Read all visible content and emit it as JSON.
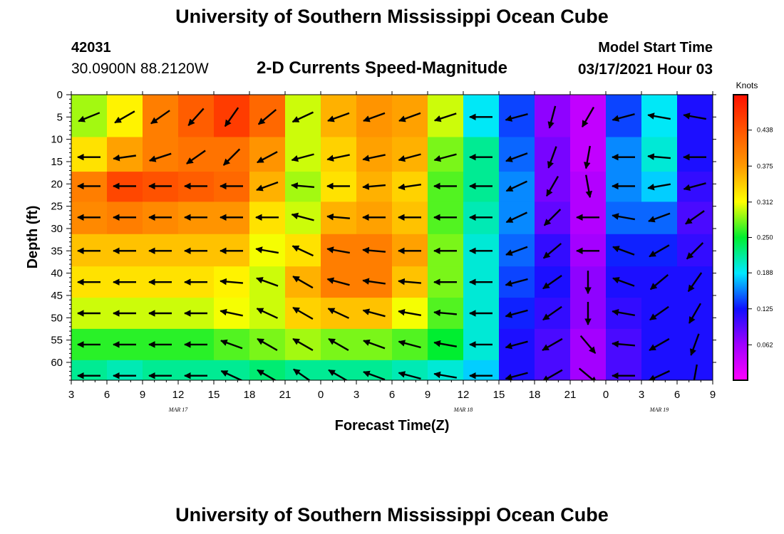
{
  "header": {
    "title": "University of Southern Mississippi Ocean Cube",
    "station_id": "42031",
    "station_location": "30.0900N 88.2120W",
    "model_start_label": "Model Start Time",
    "model_start_time": "03/17/2021 Hour 03"
  },
  "footer": {
    "title": "University of Southern Mississippi Ocean Cube"
  },
  "chart_data": {
    "type": "heatmap",
    "title": "2-D Currents Speed-Magnitude",
    "xlabel": "Forecast Time(Z)",
    "ylabel": "Depth (ft)",
    "x_tick_labels": [
      "3",
      "6",
      "9",
      "12",
      "15",
      "18",
      "21",
      "0",
      "3",
      "6",
      "9",
      "12",
      "15",
      "18",
      "21",
      "0",
      "3",
      "6",
      "9"
    ],
    "x_date_labels": [
      {
        "label": "MAR 17",
        "at_tick": 3
      },
      {
        "label": "MAR 18",
        "at_tick": 11
      },
      {
        "label": "MAR 19",
        "at_tick": 16.5
      }
    ],
    "y_ticks": [
      0,
      5,
      10,
      15,
      20,
      25,
      30,
      35,
      40,
      45,
      50,
      55,
      60
    ],
    "ylim": [
      0,
      64
    ],
    "y_inverted": true,
    "colorbar": {
      "label": "Knots",
      "ticks": [
        "0.438",
        "0.375",
        "0.312",
        "0.250",
        "0.188",
        "0.125",
        "0.062"
      ],
      "range": [
        0.0,
        0.5
      ]
    },
    "depths": [
      5,
      14,
      20.5,
      27.5,
      35,
      42,
      49,
      56,
      63
    ],
    "columns": [
      {
        "t": 0.5,
        "speeds": [
          0.29,
          0.33,
          0.4,
          0.39,
          0.35,
          0.33,
          0.3,
          0.26,
          0.22
        ],
        "dirs": [
          -22,
          0,
          0,
          0,
          0,
          0,
          0,
          0,
          0
        ]
      },
      {
        "t": 1.5,
        "speeds": [
          0.32,
          0.37,
          0.45,
          0.4,
          0.35,
          0.33,
          0.3,
          0.26,
          0.21
        ],
        "dirs": [
          -30,
          -8,
          0,
          0,
          0,
          0,
          0,
          0,
          0
        ]
      },
      {
        "t": 2.5,
        "speeds": [
          0.4,
          0.4,
          0.44,
          0.39,
          0.35,
          0.33,
          0.3,
          0.26,
          0.22
        ],
        "dirs": [
          -35,
          -18,
          0,
          0,
          0,
          0,
          0,
          0,
          0
        ]
      },
      {
        "t": 3.5,
        "speeds": [
          0.43,
          0.41,
          0.43,
          0.38,
          0.35,
          0.33,
          0.3,
          0.26,
          0.22
        ],
        "dirs": [
          -48,
          -35,
          0,
          0,
          0,
          0,
          0,
          0,
          0
        ]
      },
      {
        "t": 4.5,
        "speeds": [
          0.46,
          0.41,
          0.42,
          0.38,
          0.35,
          0.32,
          0.31,
          0.27,
          0.22
        ],
        "dirs": [
          -55,
          -45,
          0,
          0,
          0,
          5,
          12,
          20,
          25
        ]
      },
      {
        "t": 5.5,
        "speeds": [
          0.42,
          0.38,
          0.36,
          0.33,
          0.31,
          0.3,
          0.3,
          0.28,
          0.23
        ],
        "dirs": [
          -40,
          -28,
          -20,
          0,
          10,
          20,
          25,
          30,
          30
        ]
      },
      {
        "t": 6.5,
        "speeds": [
          0.3,
          0.3,
          0.29,
          0.3,
          0.33,
          0.36,
          0.34,
          0.29,
          0.22
        ],
        "dirs": [
          -25,
          -15,
          5,
          15,
          25,
          30,
          30,
          30,
          35
        ]
      },
      {
        "t": 7.5,
        "speeds": [
          0.36,
          0.34,
          0.33,
          0.36,
          0.4,
          0.4,
          0.35,
          0.28,
          0.22
        ],
        "dirs": [
          -20,
          -12,
          0,
          5,
          10,
          15,
          25,
          30,
          30
        ]
      },
      {
        "t": 8.5,
        "speeds": [
          0.38,
          0.37,
          0.36,
          0.37,
          0.4,
          0.4,
          0.35,
          0.28,
          0.22
        ],
        "dirs": [
          -20,
          -12,
          -5,
          0,
          5,
          8,
          15,
          20,
          20
        ]
      },
      {
        "t": 9.5,
        "speeds": [
          0.37,
          0.36,
          0.34,
          0.35,
          0.37,
          0.35,
          0.31,
          0.27,
          0.21
        ],
        "dirs": [
          -20,
          -15,
          -8,
          0,
          0,
          5,
          10,
          15,
          15
        ]
      },
      {
        "t": 10.5,
        "speeds": [
          0.3,
          0.28,
          0.27,
          0.27,
          0.28,
          0.28,
          0.27,
          0.25,
          0.2
        ],
        "dirs": [
          -18,
          -15,
          0,
          0,
          0,
          0,
          5,
          10,
          10
        ]
      },
      {
        "t": 11.5,
        "speeds": [
          0.19,
          0.22,
          0.22,
          0.21,
          0.2,
          0.2,
          0.2,
          0.2,
          0.18
        ],
        "dirs": [
          0,
          0,
          0,
          0,
          0,
          0,
          0,
          0,
          0
        ]
      },
      {
        "t": 12.5,
        "speeds": [
          0.14,
          0.15,
          0.16,
          0.16,
          0.15,
          0.14,
          0.13,
          0.12,
          0.12
        ],
        "dirs": [
          -15,
          -20,
          -25,
          -25,
          -20,
          -15,
          -15,
          -15,
          -15
        ]
      },
      {
        "t": 13.5,
        "speeds": [
          0.07,
          0.08,
          0.08,
          0.09,
          0.11,
          0.12,
          0.11,
          0.1,
          0.1
        ],
        "dirs": [
          -75,
          -70,
          -60,
          -45,
          -40,
          -35,
          -35,
          -30,
          -30
        ]
      },
      {
        "t": 14.5,
        "speeds": [
          0.04,
          0.04,
          0.05,
          0.05,
          0.06,
          0.07,
          0.07,
          0.06,
          0.06
        ],
        "dirs": [
          -60,
          -80,
          -100,
          0,
          0,
          -90,
          -90,
          -130,
          -140
        ]
      },
      {
        "t": 15.5,
        "speeds": [
          0.14,
          0.16,
          0.16,
          0.15,
          0.13,
          0.12,
          0.11,
          0.1,
          0.1
        ],
        "dirs": [
          -15,
          0,
          0,
          10,
          20,
          20,
          10,
          5,
          0
        ]
      },
      {
        "t": 16.5,
        "speeds": [
          0.19,
          0.2,
          0.18,
          0.15,
          0.13,
          0.12,
          0.12,
          0.12,
          0.12
        ],
        "dirs": [
          10,
          5,
          -10,
          -20,
          -30,
          -40,
          -35,
          -30,
          -25
        ]
      },
      {
        "t": 17.5,
        "speeds": [
          0.12,
          0.12,
          0.11,
          0.1,
          0.11,
          0.12,
          0.12,
          0.12,
          0.12
        ],
        "dirs": [
          10,
          0,
          -15,
          -35,
          -45,
          -55,
          -60,
          -70,
          -80
        ]
      }
    ]
  }
}
